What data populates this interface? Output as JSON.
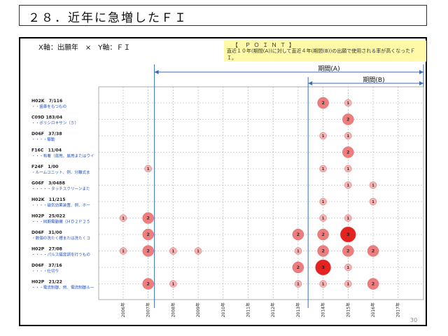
{
  "page": {
    "title": "２８．近年に急増したＦＩ",
    "axis_caption": "X軸：出願年　×　Y軸：ＦＩ",
    "point_title": "【　Ｐ Ｏ Ｉ Ｎ Ｔ 】",
    "point_text": "直近１０年(期間(A))に対して直近４年(期間(B))の出願で使用される率が高くなったＦＩ。",
    "period_a": "期間(A)",
    "period_b": "期間(B)",
    "page_number": "30"
  },
  "colors": {
    "bubble_light": "#f5b4b4",
    "bubble_mid": "#ef7d7d",
    "bubble_dark": "#e42222",
    "period_line": "#3a6db5",
    "label_blue": "#1f4fc4"
  },
  "chart_data": {
    "type": "bubble",
    "x": [
      "2006年",
      "2007年",
      "2008年",
      "2009年",
      "2010年",
      "2011年",
      "2012年",
      "2013年",
      "2014年",
      "2015年",
      "2016年",
      "2017年"
    ],
    "rows": [
      {
        "code": "H02K　7/116",
        "desc": "・・歯車をもつもの"
      },
      {
        "code": "C09D 183/04",
        "desc": "・・ポリシロキサン（５）"
      },
      {
        "code": "D06F　37/38",
        "desc": "・・・・駆動"
      },
      {
        "code": "F16C　11/04",
        "desc": "・・・有着（首用、居用またはウイ"
      },
      {
        "code": "F24F　1/00",
        "desc": "・ルームユニット、例．分離式ま"
      },
      {
        "code": "G06F　3/0488",
        "desc": "・・・・・タッチスクリーンまた"
      },
      {
        "code": "H02K　11/215",
        "desc": "・・・・磁気効果装置、例．ホー"
      },
      {
        "code": "H02P　25/022",
        "desc": "・・・同期電動機（ＨＤ２Ｐ２５"
      },
      {
        "code": "D06F　31/00",
        "desc": "・数個の洗たく槽または洗たくコ"
      },
      {
        "code": "H02P　27/08",
        "desc": "・・・・パルス幅変調を行うもの"
      },
      {
        "code": "D06F　37/16",
        "desc": "・・・・仕切り"
      },
      {
        "code": "H02P　21/22",
        "desc": "・・・電流制御、例．電流制御ルー"
      }
    ],
    "points": [
      {
        "row": 0,
        "x": "2014年",
        "value": 2
      },
      {
        "row": 0,
        "x": "2015年",
        "value": 1
      },
      {
        "row": 1,
        "x": "2015年",
        "value": 2
      },
      {
        "row": 2,
        "x": "2014年",
        "value": 1
      },
      {
        "row": 2,
        "x": "2015年",
        "value": 1
      },
      {
        "row": 3,
        "x": "2015年",
        "value": 2
      },
      {
        "row": 4,
        "x": "2007年",
        "value": 1
      },
      {
        "row": 4,
        "x": "2014年",
        "value": 1
      },
      {
        "row": 4,
        "x": "2015年",
        "value": 1
      },
      {
        "row": 5,
        "x": "2015年",
        "value": 1
      },
      {
        "row": 5,
        "x": "2016年",
        "value": 1
      },
      {
        "row": 6,
        "x": "2014年",
        "value": 1
      },
      {
        "row": 6,
        "x": "2016年",
        "value": 1
      },
      {
        "row": 7,
        "x": "2006年",
        "value": 1
      },
      {
        "row": 7,
        "x": "2007年",
        "value": 2
      },
      {
        "row": 7,
        "x": "2014年",
        "value": 1
      },
      {
        "row": 7,
        "x": "2015年",
        "value": 1
      },
      {
        "row": 8,
        "x": "2007年",
        "value": 2
      },
      {
        "row": 8,
        "x": "2013年",
        "value": 2
      },
      {
        "row": 8,
        "x": "2014年",
        "value": 2
      },
      {
        "row": 8,
        "x": "2015年",
        "value": 3
      },
      {
        "row": 9,
        "x": "2006年",
        "value": 1
      },
      {
        "row": 9,
        "x": "2007年",
        "value": 2
      },
      {
        "row": 9,
        "x": "2008年",
        "value": 1
      },
      {
        "row": 9,
        "x": "2009年",
        "value": 1
      },
      {
        "row": 9,
        "x": "2013年",
        "value": 1
      },
      {
        "row": 9,
        "x": "2014年",
        "value": 2
      },
      {
        "row": 9,
        "x": "2015年",
        "value": 2
      },
      {
        "row": 9,
        "x": "2016年",
        "value": 2
      },
      {
        "row": 10,
        "x": "2013年",
        "value": 2
      },
      {
        "row": 10,
        "x": "2014年",
        "value": 3
      },
      {
        "row": 10,
        "x": "2015年",
        "value": 1
      },
      {
        "row": 11,
        "x": "2007年",
        "value": 2
      },
      {
        "row": 11,
        "x": "2008年",
        "value": 1
      },
      {
        "row": 11,
        "x": "2013年",
        "value": 1
      },
      {
        "row": 11,
        "x": "2014年",
        "value": 1
      },
      {
        "row": 11,
        "x": "2015年",
        "value": 1
      },
      {
        "row": 11,
        "x": "2016年",
        "value": 2
      }
    ],
    "period_a_range": [
      "2007年",
      "2017年"
    ],
    "period_b_range": [
      "2013年",
      "2017年"
    ],
    "grid": true
  }
}
